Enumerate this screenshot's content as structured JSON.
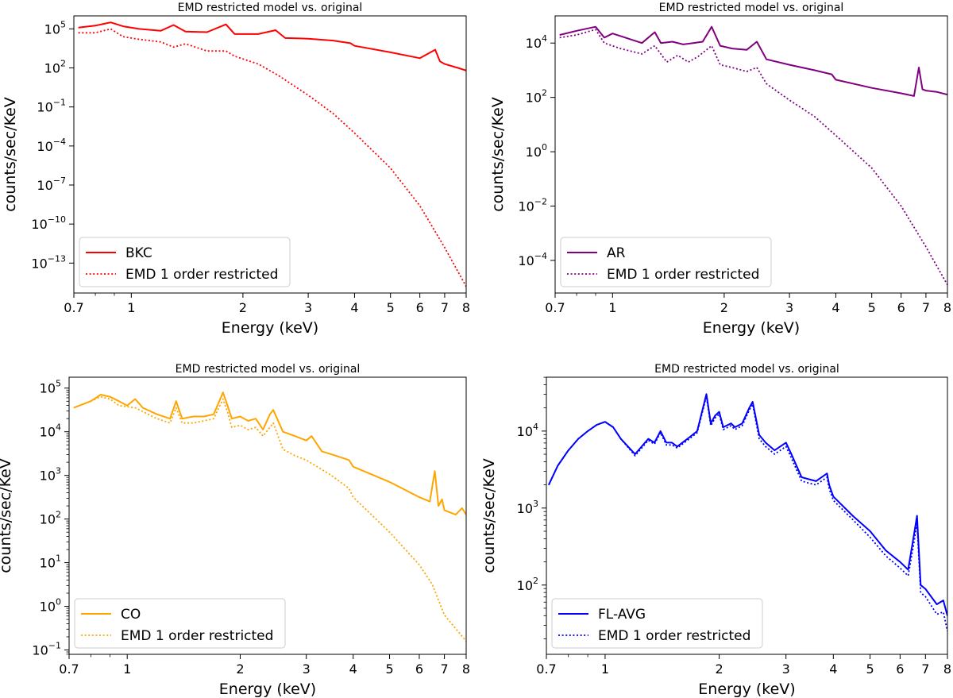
{
  "figure": {
    "description_panels": [
      "BKC",
      "AR",
      "CO",
      "FL-AVG"
    ]
  },
  "chart_data": [
    {
      "type": "line",
      "title": "EMD restricted model vs. original",
      "xlabel": "Energy (keV)",
      "ylabel": "counts/sec/KeV",
      "xscale": "log",
      "yscale": "log",
      "xlim": [
        0.7,
        8
      ],
      "ylim_exp": [
        -15.3,
        6.0
      ],
      "xticks": [
        "0.7",
        "1",
        "2",
        "3",
        "4",
        "5",
        "6",
        "7",
        "8"
      ],
      "ytick_exps": [
        2,
        -1,
        -4,
        -7,
        -10,
        -13,
        5
      ],
      "legend_position": "lower-left",
      "series": [
        {
          "name": "BKC",
          "color": "#ff0000",
          "style": "solid",
          "x": [
            0.72,
            0.8,
            0.88,
            0.95,
            1.05,
            1.2,
            1.3,
            1.4,
            1.6,
            1.8,
            1.9,
            2.2,
            2.45,
            2.6,
            3.0,
            3.5,
            3.9,
            4.0,
            5.0,
            6.0,
            6.6,
            6.8,
            7.0,
            7.6,
            8.0
          ],
          "y_exp": [
            5.1,
            5.25,
            5.5,
            5.2,
            5.0,
            4.85,
            5.3,
            4.8,
            4.75,
            5.35,
            4.6,
            4.6,
            4.9,
            4.3,
            4.25,
            4.1,
            3.9,
            3.7,
            3.2,
            2.75,
            3.4,
            2.5,
            2.3,
            2.0,
            1.8
          ]
        },
        {
          "name": "EMD 1 order restricted",
          "color": "#ff0000",
          "style": "dotted",
          "x": [
            0.72,
            0.8,
            0.88,
            0.95,
            1.05,
            1.2,
            1.3,
            1.4,
            1.6,
            1.8,
            1.9,
            2.2,
            2.5,
            3.0,
            3.5,
            4.0,
            5.0,
            6.0,
            7.0,
            8.0
          ],
          "y_exp": [
            4.7,
            4.7,
            5.0,
            4.4,
            4.2,
            4.0,
            3.6,
            3.85,
            3.3,
            3.3,
            2.9,
            2.3,
            1.4,
            -0.1,
            -1.5,
            -3.0,
            -5.7,
            -8.6,
            -11.8,
            -14.8
          ]
        }
      ]
    },
    {
      "type": "line",
      "title": "EMD restricted model vs. original",
      "xlabel": "Energy (keV)",
      "ylabel": "counts/sec/KeV",
      "xscale": "log",
      "yscale": "log",
      "xlim": [
        0.7,
        8
      ],
      "ylim_exp": [
        -5.2,
        5.0
      ],
      "xticks": [
        "0.7",
        "1",
        "2",
        "3",
        "4",
        "5",
        "6",
        "7",
        "8"
      ],
      "ytick_exps": [
        4,
        2,
        0,
        -2,
        -4
      ],
      "legend_position": "lower-left",
      "series": [
        {
          "name": "AR",
          "color": "#800080",
          "style": "solid",
          "x": [
            0.72,
            0.8,
            0.9,
            0.95,
            1.0,
            1.2,
            1.3,
            1.35,
            1.45,
            1.55,
            1.65,
            1.75,
            1.85,
            1.95,
            2.1,
            2.3,
            2.45,
            2.6,
            3.0,
            3.5,
            3.9,
            4.0,
            5.0,
            6.0,
            6.5,
            6.7,
            6.85,
            7.0,
            7.5,
            8.0
          ],
          "y_exp": [
            4.3,
            4.45,
            4.6,
            4.2,
            4.35,
            4.0,
            4.4,
            4.0,
            4.05,
            3.95,
            4.0,
            4.05,
            4.6,
            3.9,
            3.8,
            3.75,
            4.05,
            3.4,
            3.2,
            3.0,
            2.85,
            2.65,
            2.35,
            2.15,
            2.05,
            3.1,
            2.3,
            2.25,
            2.2,
            2.1
          ]
        },
        {
          "name": "EMD 1 order restricted",
          "color": "#800080",
          "style": "dotted",
          "x": [
            0.72,
            0.8,
            0.9,
            0.95,
            1.05,
            1.2,
            1.3,
            1.4,
            1.5,
            1.6,
            1.7,
            1.85,
            1.95,
            2.1,
            2.3,
            2.45,
            2.6,
            3.0,
            3.5,
            4.0,
            5.0,
            6.0,
            7.0,
            8.0
          ],
          "y_exp": [
            4.2,
            4.3,
            4.5,
            4.0,
            3.8,
            3.6,
            3.9,
            3.3,
            3.55,
            3.3,
            3.5,
            3.9,
            3.2,
            3.1,
            2.95,
            3.1,
            2.5,
            1.9,
            1.3,
            0.6,
            -0.6,
            -2.0,
            -3.5,
            -4.9
          ]
        }
      ]
    },
    {
      "type": "line",
      "title": "EMD restricted model vs. original",
      "xlabel": "Energy (keV)",
      "ylabel": "counts/sec/KeV",
      "xscale": "log",
      "yscale": "log",
      "xlim": [
        0.7,
        8
      ],
      "ylim_exp": [
        -1.1,
        5.25
      ],
      "xticks": [
        "0.7",
        "1",
        "2",
        "3",
        "4",
        "5",
        "6",
        "7",
        "8"
      ],
      "ytick_exps": [
        5,
        4,
        3,
        2,
        1,
        0,
        -1
      ],
      "legend_position": "lower-left",
      "series": [
        {
          "name": "CO",
          "color": "#ffa500",
          "style": "solid",
          "x": [
            0.72,
            0.8,
            0.85,
            0.9,
            0.95,
            1.0,
            1.05,
            1.1,
            1.2,
            1.3,
            1.35,
            1.4,
            1.5,
            1.6,
            1.7,
            1.8,
            1.85,
            1.9,
            2.0,
            2.1,
            2.2,
            2.3,
            2.4,
            2.45,
            2.6,
            2.8,
            3.0,
            3.1,
            3.3,
            3.6,
            3.9,
            4.0,
            5.0,
            6.0,
            6.4,
            6.6,
            6.75,
            6.9,
            7.0,
            7.5,
            7.8,
            8.0
          ],
          "y_exp": [
            4.55,
            4.7,
            4.85,
            4.8,
            4.7,
            4.6,
            4.75,
            4.55,
            4.4,
            4.3,
            4.7,
            4.3,
            4.35,
            4.35,
            4.4,
            4.9,
            4.6,
            4.3,
            4.35,
            4.25,
            4.3,
            4.05,
            4.4,
            4.5,
            4.0,
            3.9,
            3.8,
            3.9,
            3.55,
            3.45,
            3.35,
            3.2,
            2.85,
            2.5,
            2.4,
            3.1,
            2.3,
            2.45,
            2.2,
            2.1,
            2.25,
            2.1
          ]
        },
        {
          "name": "EMD 1 order restricted",
          "color": "#ffa500",
          "style": "dotted",
          "x": [
            0.72,
            0.8,
            0.85,
            0.9,
            0.95,
            1.05,
            1.2,
            1.3,
            1.35,
            1.4,
            1.5,
            1.6,
            1.7,
            1.8,
            1.85,
            1.9,
            2.0,
            2.1,
            2.2,
            2.3,
            2.45,
            2.6,
            2.8,
            3.0,
            3.5,
            3.9,
            4.0,
            5.0,
            6.0,
            6.5,
            7.0,
            8.0
          ],
          "y_exp": [
            4.55,
            4.7,
            4.8,
            4.75,
            4.6,
            4.55,
            4.3,
            4.2,
            4.55,
            4.2,
            4.2,
            4.25,
            4.3,
            4.75,
            4.45,
            4.1,
            4.15,
            4.05,
            4.1,
            3.9,
            4.2,
            3.6,
            3.45,
            3.35,
            3.0,
            2.7,
            2.5,
            1.7,
            0.95,
            0.5,
            -0.2,
            -0.8
          ]
        }
      ]
    },
    {
      "type": "line",
      "title": "EMD restricted model vs. original",
      "xlabel": "Energy (keV)",
      "ylabel": "counts/sec/KeV",
      "xscale": "log",
      "yscale": "log",
      "xlim": [
        0.7,
        8
      ],
      "ylim_exp": [
        1.1,
        4.7
      ],
      "xticks": [
        "0.7",
        "1",
        "2",
        "3",
        "4",
        "5",
        "6",
        "7",
        "8"
      ],
      "ytick_exps": [
        4,
        3,
        2
      ],
      "legend_position": "lower-left",
      "series": [
        {
          "name": "FL-AVG",
          "color": "#0000ff",
          "style": "solid",
          "x": [
            0.71,
            0.75,
            0.8,
            0.85,
            0.9,
            0.95,
            1.0,
            1.05,
            1.1,
            1.2,
            1.3,
            1.35,
            1.4,
            1.45,
            1.5,
            1.55,
            1.65,
            1.75,
            1.85,
            1.9,
            1.95,
            2.0,
            2.05,
            2.15,
            2.2,
            2.3,
            2.4,
            2.45,
            2.55,
            2.65,
            2.8,
            3.0,
            3.1,
            3.3,
            3.6,
            3.85,
            3.9,
            4.0,
            4.5,
            5.0,
            5.5,
            6.0,
            6.3,
            6.5,
            6.65,
            6.8,
            7.0,
            7.5,
            7.8,
            8.0
          ],
          "y_exp": [
            3.3,
            3.55,
            3.75,
            3.9,
            4.0,
            4.08,
            4.12,
            4.05,
            3.9,
            3.7,
            3.9,
            3.85,
            4.0,
            3.85,
            3.85,
            3.8,
            3.9,
            4.0,
            4.48,
            4.1,
            4.2,
            4.25,
            4.05,
            4.1,
            4.05,
            4.1,
            4.3,
            4.38,
            3.95,
            3.85,
            3.75,
            3.85,
            3.7,
            3.4,
            3.35,
            3.45,
            3.3,
            3.15,
            2.9,
            2.7,
            2.45,
            2.3,
            2.2,
            2.6,
            2.9,
            2.0,
            1.95,
            1.75,
            1.8,
            1.6
          ]
        },
        {
          "name": "EMD 1 order restricted",
          "color": "#0000ff",
          "style": "dotted",
          "x": [
            0.71,
            0.75,
            0.8,
            0.85,
            0.9,
            0.95,
            1.0,
            1.05,
            1.1,
            1.2,
            1.3,
            1.35,
            1.4,
            1.45,
            1.5,
            1.55,
            1.65,
            1.75,
            1.85,
            1.9,
            1.95,
            2.0,
            2.05,
            2.15,
            2.2,
            2.3,
            2.4,
            2.45,
            2.55,
            2.65,
            2.8,
            3.0,
            3.1,
            3.3,
            3.6,
            3.85,
            3.9,
            4.0,
            4.5,
            5.0,
            5.5,
            6.0,
            6.3,
            6.5,
            6.65,
            6.8,
            7.0,
            7.5,
            7.8,
            8.0
          ],
          "y_exp": [
            3.3,
            3.55,
            3.75,
            3.9,
            4.0,
            4.08,
            4.12,
            4.05,
            3.9,
            3.68,
            3.88,
            3.83,
            3.98,
            3.82,
            3.82,
            3.78,
            3.88,
            3.98,
            4.45,
            4.07,
            4.17,
            4.22,
            4.02,
            4.07,
            4.02,
            4.07,
            4.27,
            4.35,
            3.9,
            3.8,
            3.7,
            3.8,
            3.65,
            3.35,
            3.3,
            3.4,
            3.25,
            3.1,
            2.85,
            2.62,
            2.38,
            2.22,
            2.12,
            2.5,
            2.8,
            1.9,
            1.85,
            1.62,
            1.65,
            1.4
          ]
        }
      ]
    }
  ]
}
